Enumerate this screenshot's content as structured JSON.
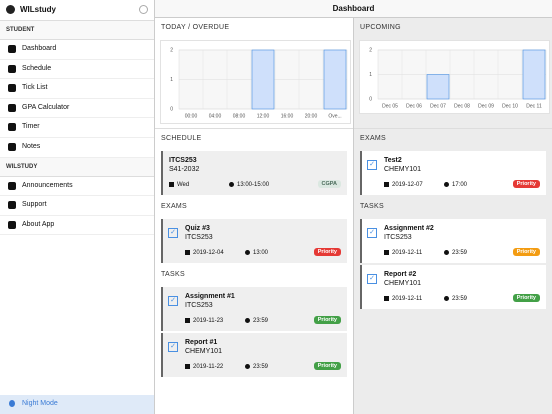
{
  "sidebar": {
    "app_name": "WILstudy",
    "sections": [
      {
        "title": "STUDENT",
        "items": [
          "Dashboard",
          "Schedule",
          "Tick List",
          "GPA Calculator",
          "Timer",
          "Notes"
        ]
      },
      {
        "title": "WILSTUDY",
        "items": [
          "Announcements",
          "Support",
          "About App"
        ]
      }
    ],
    "night_mode": "Night Mode"
  },
  "header": {
    "title": "Dashboard"
  },
  "left": {
    "title": "TODAY / OVERDUE",
    "chart": {
      "type": "bar",
      "categories": [
        "00:00",
        "04:00",
        "08:00",
        "12:00",
        "16:00",
        "20:00",
        "Ove..."
      ],
      "values": [
        0,
        0,
        0,
        2,
        0,
        0,
        2
      ],
      "ylim": [
        0,
        2
      ],
      "yticks": [
        0,
        1,
        2
      ],
      "color": "#cfe0fb",
      "grid": true
    },
    "sections": [
      {
        "title": "SCHEDULE",
        "cards": [
          {
            "title": "ITCS253",
            "subtitle": "S41-2032",
            "date": "Wed",
            "time": "13:00-15:00",
            "tag": "CGPA",
            "tag_color": "#dbe8e1",
            "checkable": false
          }
        ]
      },
      {
        "title": "EXAMS",
        "cards": [
          {
            "title": "Quiz #3",
            "subtitle": "ITCS253",
            "date": "2019-12-04",
            "time": "13:00",
            "tag": "Priority",
            "tag_color": "#e53935",
            "checkable": true
          }
        ]
      },
      {
        "title": "TASKS",
        "cards": [
          {
            "title": "Assignment #1",
            "subtitle": "ITCS253",
            "date": "2019-11-23",
            "time": "23:59",
            "tag": "Priority",
            "tag_color": "#43a047",
            "checkable": true
          },
          {
            "title": "Report #1",
            "subtitle": "CHEMY101",
            "date": "2019-11-22",
            "time": "23:59",
            "tag": "Priority",
            "tag_color": "#43a047",
            "checkable": true
          }
        ]
      }
    ]
  },
  "right": {
    "title": "UPCOMING",
    "chart": {
      "type": "bar",
      "categories": [
        "Dec 05",
        "Dec 06",
        "Dec 07",
        "Dec 08",
        "Dec 09",
        "Dec 10",
        "Dec 11"
      ],
      "values": [
        0,
        0,
        1,
        0,
        0,
        0,
        2
      ],
      "ylim": [
        0,
        2
      ],
      "yticks": [
        0,
        1,
        2
      ],
      "color": "#cfe0fb",
      "grid": true
    },
    "sections": [
      {
        "title": "EXAMS",
        "cards": [
          {
            "title": "Test2",
            "subtitle": "CHEMY101",
            "date": "2019-12-07",
            "time": "17:00",
            "tag": "Priority",
            "tag_color": "#e53935",
            "checkable": true
          }
        ]
      },
      {
        "title": "TASKS",
        "cards": [
          {
            "title": "Assignment #2",
            "subtitle": "ITCS253",
            "date": "2019-12-11",
            "time": "23:59",
            "tag": "Priority",
            "tag_color": "#f39c12",
            "checkable": true
          },
          {
            "title": "Report #2",
            "subtitle": "CHEMY101",
            "date": "2019-12-11",
            "time": "23:59",
            "tag": "Priority",
            "tag_color": "#43a047",
            "checkable": true
          }
        ]
      }
    ]
  }
}
